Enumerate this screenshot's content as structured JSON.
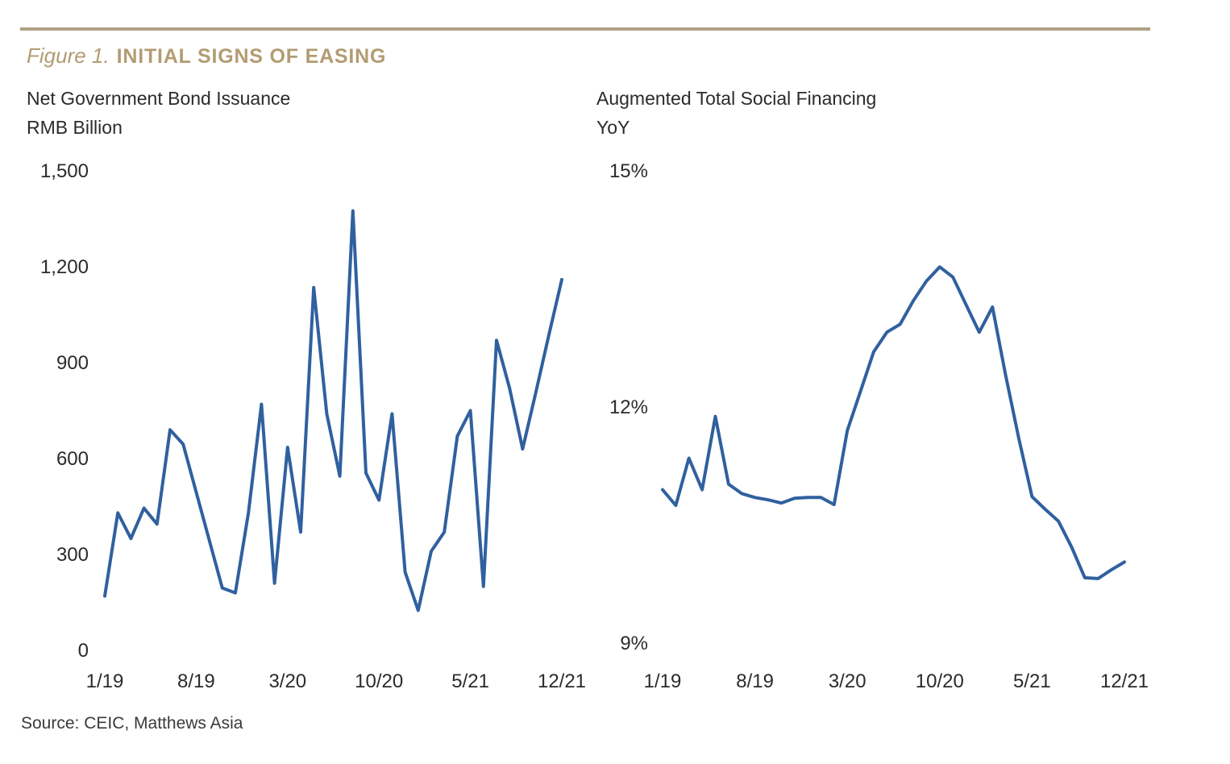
{
  "figure": {
    "label": "Figure 1.",
    "title": "INITIAL SIGNS OF EASING"
  },
  "source_note": "Source: CEIC, Matthews Asia",
  "colors": {
    "accent_gold": "#b29c72",
    "rule_gold": "#b1a083",
    "line_blue": "#30609f",
    "text_dark": "#2b2b2b"
  },
  "chart_data": [
    {
      "type": "line",
      "title": "Net Government Bond Issuance",
      "ylabel": "RMB Billion",
      "x_unit": "month",
      "legend": false,
      "grid": false,
      "months": [
        "1/19",
        "2/19",
        "3/19",
        "4/19",
        "5/19",
        "6/19",
        "7/19",
        "8/19",
        "9/19",
        "10/19",
        "11/19",
        "12/19",
        "1/20",
        "2/20",
        "3/20",
        "4/20",
        "5/20",
        "6/20",
        "7/20",
        "8/20",
        "9/20",
        "10/20",
        "11/20",
        "12/20",
        "1/21",
        "2/21",
        "3/21",
        "4/21",
        "5/21",
        "6/21",
        "7/21",
        "8/21",
        "9/21",
        "10/21",
        "11/21",
        "12/21"
      ],
      "values": [
        170,
        430,
        350,
        445,
        395,
        690,
        645,
        495,
        345,
        195,
        180,
        430,
        770,
        210,
        635,
        370,
        1135,
        740,
        545,
        1375,
        555,
        470,
        740,
        245,
        125,
        310,
        370,
        670,
        750,
        200,
        970,
        820,
        630,
        805,
        985,
        1160
      ],
      "ylim": [
        0,
        1500
      ],
      "yticks": [
        {
          "value": 1500,
          "label": "1,500"
        },
        {
          "value": 1200,
          "label": "1,200"
        },
        {
          "value": 900,
          "label": "900"
        },
        {
          "value": 600,
          "label": "600"
        },
        {
          "value": 300,
          "label": "300"
        },
        {
          "value": 0,
          "label": "0"
        }
      ],
      "xticks": [
        {
          "month_index": 0,
          "label": "1/19"
        },
        {
          "month_index": 7,
          "label": "8/19"
        },
        {
          "month_index": 14,
          "label": "3/20"
        },
        {
          "month_index": 21,
          "label": "10/20"
        },
        {
          "month_index": 28,
          "label": "5/21"
        },
        {
          "month_index": 35,
          "label": "12/21"
        }
      ]
    },
    {
      "type": "line",
      "title": "Augmented Total Social Financing",
      "ylabel": "YoY",
      "x_unit": "month",
      "legend": false,
      "grid": false,
      "months": [
        "1/19",
        "2/19",
        "3/19",
        "4/19",
        "5/19",
        "6/19",
        "7/19",
        "8/19",
        "9/19",
        "10/19",
        "11/19",
        "12/19",
        "1/20",
        "2/20",
        "3/20",
        "4/20",
        "5/20",
        "6/20",
        "7/20",
        "8/20",
        "9/20",
        "10/20",
        "11/20",
        "12/20",
        "1/21",
        "2/21",
        "3/21",
        "4/21",
        "5/21",
        "6/21",
        "7/21",
        "8/21",
        "9/21",
        "10/21",
        "11/21",
        "12/21"
      ],
      "values": [
        10.95,
        10.75,
        11.35,
        10.95,
        11.88,
        11.02,
        10.9,
        10.85,
        10.82,
        10.78,
        10.84,
        10.85,
        10.85,
        10.76,
        11.7,
        12.2,
        12.7,
        12.95,
        13.05,
        13.35,
        13.6,
        13.78,
        13.65,
        13.3,
        12.95,
        13.27,
        12.4,
        11.6,
        10.86,
        10.7,
        10.55,
        10.22,
        9.83,
        9.82,
        9.93,
        10.03
      ],
      "ylim": [
        9,
        15
      ],
      "yticks": [
        {
          "value": 15,
          "label": "15%"
        },
        {
          "value": 12,
          "label": "12%"
        },
        {
          "value": 9,
          "label": "9%"
        }
      ],
      "xticks": [
        {
          "month_index": 0,
          "label": "1/19"
        },
        {
          "month_index": 7,
          "label": "8/19"
        },
        {
          "month_index": 14,
          "label": "3/20"
        },
        {
          "month_index": 21,
          "label": "10/20"
        },
        {
          "month_index": 28,
          "label": "5/21"
        },
        {
          "month_index": 35,
          "label": "12/21"
        }
      ]
    }
  ]
}
